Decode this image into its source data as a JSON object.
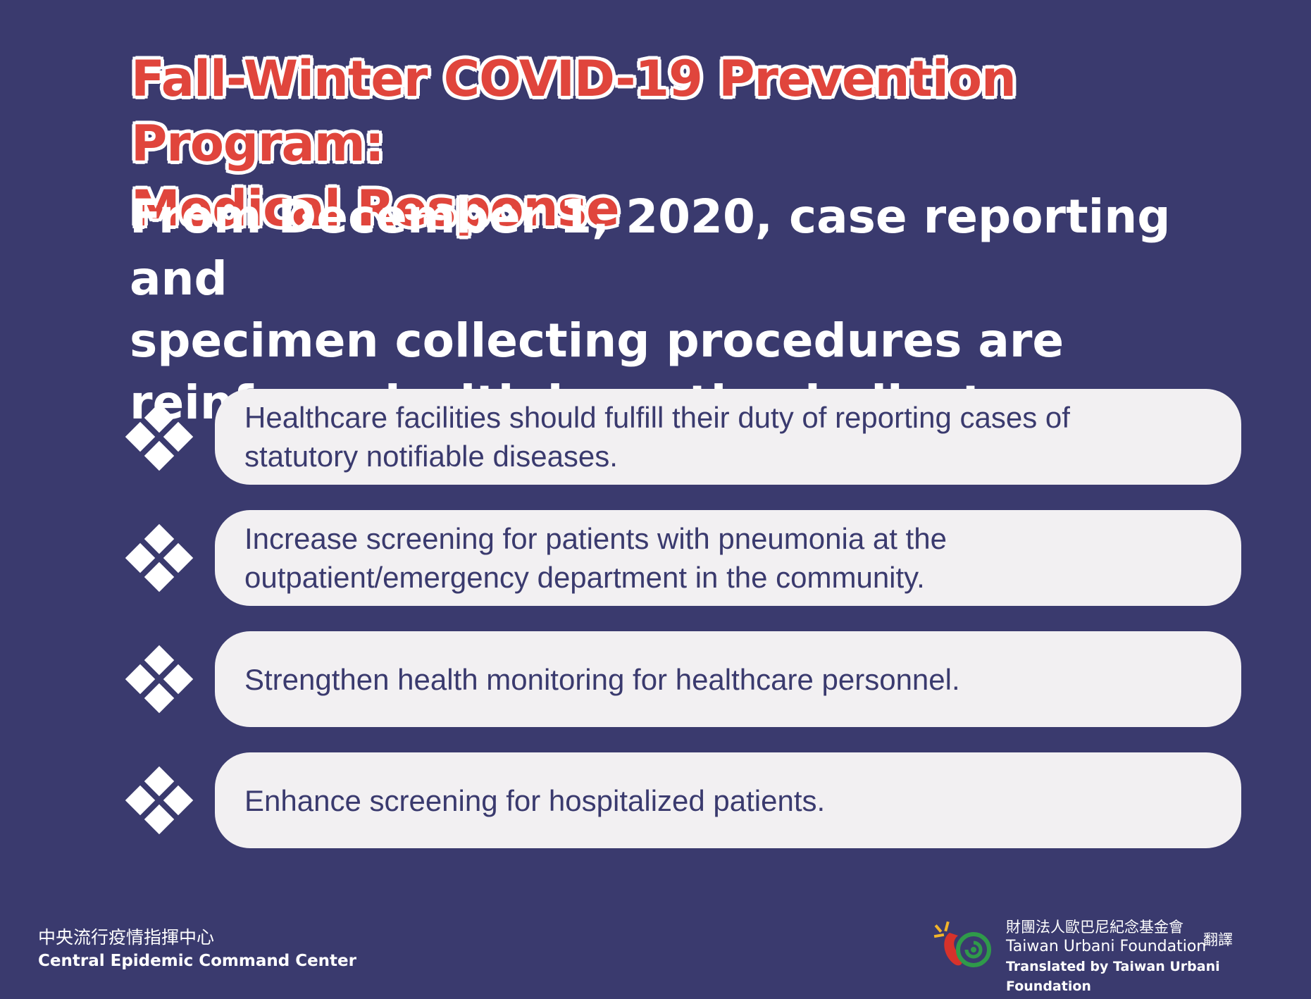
{
  "title": {
    "line1": "Fall-Winter COVID-19 Prevention Program:",
    "line2": "Medical Response"
  },
  "subtitle": {
    "line1": "From December 1, 2020, case reporting and",
    "line2": "specimen collecting procedures are",
    "line3": "reinforced with incentive indicators"
  },
  "items": [
    {
      "line1": "Healthcare facilities should fulfill their duty of reporting cases of",
      "line2": "statutory notifiable diseases."
    },
    {
      "line1": "Increase screening for patients with pneumonia at the",
      "line2": "outpatient/emergency department in the community."
    },
    {
      "line1": "Strengthen health monitoring for healthcare personnel.",
      "line2": ""
    },
    {
      "line1": "Enhance screening for hospitalized patients.",
      "line2": ""
    }
  ],
  "footer": {
    "left_cn": "中央流行疫情指揮中心",
    "left_en": "Central Epidemic Command Center",
    "right_cn": "財團法人歐巴尼紀念基金會",
    "right_en": "Taiwan Urbani Foundation",
    "right_translated": "Translated by Taiwan Urbani Foundation",
    "right_side": "翻譯"
  },
  "colors": {
    "background": "#3a3a6e",
    "title": "#e0453c",
    "pill": "#f2f0f2",
    "text_dark": "#3a3a6e"
  }
}
